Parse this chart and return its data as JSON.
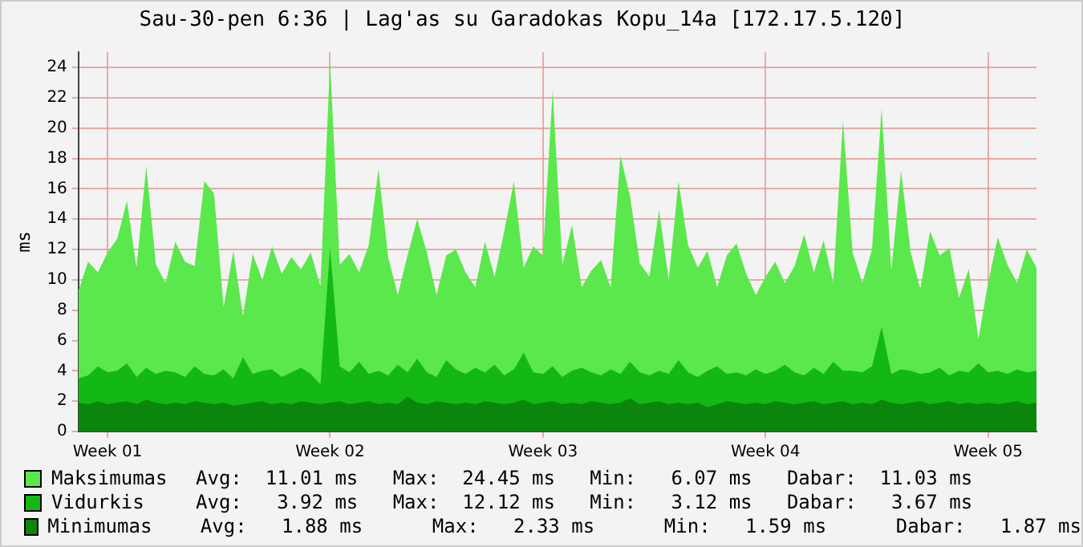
{
  "chart_data": {
    "type": "area",
    "title": "Sau-30-pen 6:36 | Lag'as su Garadokas Kopu_14a [172.17.5.120]",
    "ylabel": "ms",
    "categories": [
      null,
      null,
      null,
      "Week 01",
      null,
      null,
      null,
      null,
      null,
      null,
      null,
      null,
      null,
      null,
      null,
      null,
      null,
      null,
      null,
      null,
      null,
      null,
      null,
      null,
      null,
      null,
      "Week 02",
      null,
      null,
      null,
      null,
      null,
      null,
      null,
      null,
      null,
      null,
      null,
      null,
      null,
      null,
      null,
      null,
      null,
      null,
      null,
      null,
      null,
      "Week 03",
      null,
      null,
      null,
      null,
      null,
      null,
      null,
      null,
      null,
      null,
      null,
      null,
      null,
      null,
      null,
      null,
      null,
      null,
      null,
      null,
      null,
      null,
      "Week 04",
      null,
      null,
      null,
      null,
      null,
      null,
      null,
      null,
      null,
      null,
      null,
      null,
      null,
      null,
      null,
      null,
      null,
      null,
      null,
      null,
      null,
      null,
      "Week 05",
      null,
      null,
      null,
      null,
      null
    ],
    "series": [
      {
        "name": "Maksimumas",
        "color": "#5ae84c",
        "values": [
          9.3,
          11.2,
          10.5,
          11.8,
          12.7,
          15.2,
          10.8,
          17.5,
          11.0,
          9.8,
          12.5,
          11.2,
          10.9,
          16.5,
          15.7,
          8.2,
          11.9,
          7.6,
          11.7,
          10.0,
          12.2,
          10.4,
          11.5,
          10.7,
          11.8,
          9.6,
          24.4,
          11.0,
          11.7,
          10.5,
          12.3,
          17.3,
          11.5,
          9.0,
          11.6,
          14.0,
          11.8,
          9.0,
          11.6,
          12.0,
          10.5,
          9.5,
          12.5,
          10.2,
          13.2,
          16.5,
          10.8,
          12.2,
          11.6,
          22.5,
          11.0,
          13.6,
          9.5,
          10.6,
          11.3,
          9.5,
          18.2,
          15.5,
          11.1,
          10.2,
          14.6,
          10.0,
          16.5,
          12.3,
          10.8,
          11.9,
          9.5,
          11.6,
          12.4,
          10.4,
          9.0,
          10.2,
          11.2,
          9.8,
          10.9,
          13.0,
          10.5,
          12.6,
          9.8,
          20.5,
          11.8,
          9.8,
          12.0,
          21.3,
          10.6,
          17.2,
          11.8,
          9.4,
          13.2,
          11.6,
          12.1,
          8.8,
          10.7,
          6.1,
          9.8,
          12.8,
          11.0,
          9.8,
          12.0,
          10.8
        ]
      },
      {
        "name": "Vidurkis",
        "color": "#14b814",
        "values": [
          3.5,
          3.7,
          4.3,
          3.9,
          4.0,
          4.5,
          3.6,
          4.2,
          3.8,
          4.0,
          3.9,
          3.6,
          4.3,
          3.8,
          3.7,
          4.1,
          3.5,
          4.9,
          3.8,
          4.0,
          4.1,
          3.6,
          3.9,
          4.2,
          3.8,
          3.1,
          12.1,
          4.3,
          3.9,
          4.6,
          3.8,
          4.0,
          3.7,
          4.4,
          3.9,
          4.8,
          3.9,
          3.6,
          4.7,
          4.1,
          3.8,
          4.2,
          3.9,
          4.4,
          3.7,
          4.1,
          5.2,
          3.9,
          3.8,
          4.3,
          3.6,
          4.0,
          4.2,
          3.9,
          3.7,
          4.1,
          3.8,
          4.6,
          3.9,
          3.7,
          4.0,
          3.8,
          4.7,
          3.9,
          3.6,
          4.0,
          4.3,
          3.8,
          3.9,
          3.7,
          4.1,
          3.8,
          4.0,
          4.4,
          3.9,
          3.7,
          4.2,
          3.8,
          4.6,
          4.0,
          4.0,
          3.9,
          4.3,
          6.9,
          3.8,
          4.1,
          4.0,
          3.8,
          3.9,
          4.2,
          3.7,
          4.0,
          3.9,
          4.5,
          3.9,
          4.0,
          3.8,
          4.1,
          3.9,
          4.0
        ]
      },
      {
        "name": "Minimumas",
        "color": "#0b850b",
        "values": [
          1.9,
          1.8,
          2.0,
          1.8,
          1.9,
          2.0,
          1.8,
          2.1,
          1.9,
          1.8,
          1.9,
          1.8,
          2.0,
          1.9,
          1.8,
          1.9,
          1.7,
          1.8,
          1.9,
          2.0,
          1.8,
          1.9,
          1.8,
          2.0,
          1.9,
          1.8,
          1.9,
          2.0,
          1.8,
          1.9,
          2.0,
          1.8,
          1.9,
          1.8,
          2.3,
          1.9,
          1.8,
          2.0,
          1.9,
          1.8,
          1.9,
          1.8,
          2.0,
          1.9,
          1.8,
          1.9,
          2.1,
          1.8,
          1.9,
          2.0,
          1.8,
          1.9,
          1.8,
          2.0,
          1.9,
          1.8,
          1.9,
          2.2,
          1.8,
          1.9,
          2.0,
          1.8,
          1.9,
          1.8,
          1.9,
          1.6,
          1.8,
          2.0,
          1.9,
          1.8,
          1.9,
          1.8,
          2.0,
          1.9,
          1.8,
          1.9,
          2.0,
          1.8,
          1.9,
          2.0,
          1.8,
          1.9,
          1.8,
          2.1,
          1.9,
          1.8,
          1.9,
          2.0,
          1.8,
          1.9,
          2.0,
          1.8,
          1.9,
          1.8,
          1.9,
          1.8,
          1.9,
          2.0,
          1.8,
          1.9
        ]
      }
    ],
    "ylim": [
      0,
      25
    ],
    "yticks": [
      0,
      2,
      4,
      6,
      8,
      10,
      12,
      14,
      16,
      18,
      20,
      22,
      24
    ],
    "grid": true,
    "legend": "bottom",
    "annotations": [
      "Avg:  11.01 ms   Max:  24.45 ms   Min:   6.07 ms   Dabar:  11.03 ms",
      "Avg:   3.92 ms   Max:  12.12 ms   Min:   3.12 ms   Dabar:   3.67 ms",
      "    Avg:   1.88 ms      Max:   2.33 ms      Min:   1.59 ms      Dabar:   1.87 ms"
    ]
  }
}
